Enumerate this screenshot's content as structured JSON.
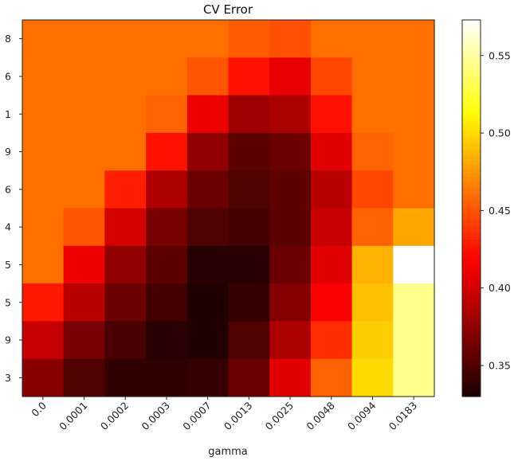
{
  "chart_data": {
    "type": "heatmap",
    "title": "CV Error",
    "xlabel": "gamma",
    "ylabel": "",
    "x_categories": [
      "0.0",
      "0.0001",
      "0.0002",
      "0.0003",
      "0.0007",
      "0.0013",
      "0.0025",
      "0.0048",
      "0.0094",
      "0.0183"
    ],
    "y_categories": [
      "8",
      "6",
      "1",
      "9",
      "6",
      "4",
      "5",
      "5",
      "9",
      "3"
    ],
    "colormap": "hot",
    "colorbar": {
      "vmin": 0.33,
      "vmax": 0.573,
      "ticks": [
        "0.35",
        "0.40",
        "0.45",
        "0.50",
        "0.55"
      ]
    },
    "values": [
      [
        0.46,
        0.46,
        0.46,
        0.46,
        0.46,
        0.453,
        0.448,
        0.46,
        0.46,
        0.46
      ],
      [
        0.46,
        0.46,
        0.46,
        0.46,
        0.45,
        0.425,
        0.408,
        0.445,
        0.46,
        0.46
      ],
      [
        0.46,
        0.46,
        0.46,
        0.455,
        0.41,
        0.38,
        0.385,
        0.425,
        0.46,
        0.46
      ],
      [
        0.46,
        0.46,
        0.46,
        0.425,
        0.375,
        0.355,
        0.36,
        0.405,
        0.455,
        0.46
      ],
      [
        0.46,
        0.46,
        0.43,
        0.385,
        0.36,
        0.35,
        0.355,
        0.39,
        0.445,
        0.46
      ],
      [
        0.46,
        0.45,
        0.4,
        0.365,
        0.35,
        0.345,
        0.355,
        0.395,
        0.455,
        0.48
      ],
      [
        0.46,
        0.41,
        0.375,
        0.355,
        0.335,
        0.335,
        0.36,
        0.405,
        0.485,
        0.573
      ],
      [
        0.428,
        0.39,
        0.36,
        0.345,
        0.332,
        0.34,
        0.37,
        0.415,
        0.49,
        0.545
      ],
      [
        0.395,
        0.365,
        0.348,
        0.335,
        0.332,
        0.35,
        0.385,
        0.435,
        0.495,
        0.545
      ],
      [
        0.372,
        0.35,
        0.338,
        0.338,
        0.34,
        0.36,
        0.405,
        0.455,
        0.5,
        0.545
      ]
    ]
  }
}
